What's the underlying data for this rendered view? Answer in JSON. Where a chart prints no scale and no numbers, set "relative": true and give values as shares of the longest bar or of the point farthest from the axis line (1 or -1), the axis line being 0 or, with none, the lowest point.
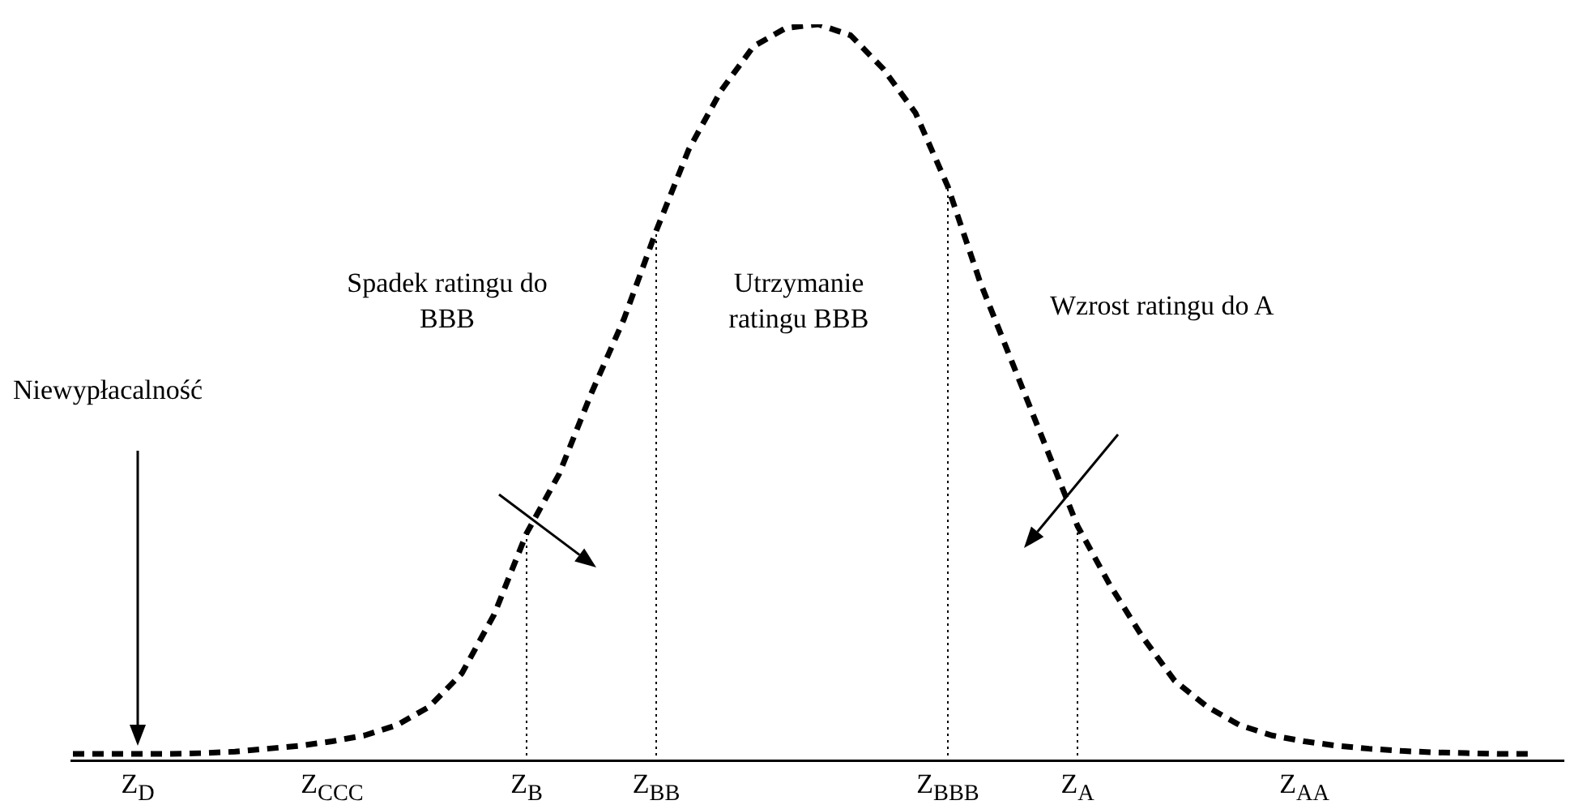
{
  "chart_data": {
    "type": "line",
    "relative": true,
    "line_style": "dashed",
    "marker": "none",
    "grid": false,
    "legend": false,
    "tick_labels": "x",
    "categories": [
      null,
      null,
      "Z$_{D}$",
      null,
      null,
      null,
      null,
      null,
      "Z$_{CCC}$",
      null,
      null,
      null,
      null,
      null,
      "Z$_{B}$",
      null,
      null,
      null,
      "Z$_{BB}$",
      null,
      null,
      null,
      null,
      null,
      null,
      null,
      null,
      "Z$_{BBB}$",
      null,
      null,
      null,
      "Z$_{A}$",
      null,
      null,
      null,
      null,
      null,
      null,
      "Z$_{AA}$",
      null,
      null,
      null,
      null,
      null,
      null,
      null,
      null
    ],
    "series": [
      {
        "color": "#000000",
        "values": [
          0.011,
          0.011,
          0.011,
          0.011,
          0.012,
          0.014,
          0.018,
          0.022,
          0.028,
          0.036,
          0.05,
          0.075,
          0.12,
          0.2,
          0.31,
          0.39,
          0.5,
          0.6,
          0.72,
          0.83,
          0.91,
          0.97,
          0.995,
          1,
          0.985,
          0.94,
          0.88,
          0.78,
          0.65,
          0.54,
          0.43,
          0.32,
          0.24,
          0.17,
          0.11,
          0.075,
          0.05,
          0.036,
          0.028,
          0.022,
          0.018,
          0.015,
          0.013,
          0.012,
          0.011,
          0.011,
          null
        ]
      }
    ],
    "ref_lines": [
      {
        "axis": "x",
        "value": "Z$_{B}$",
        "line_style": "dotted",
        "color": "#000000"
      },
      {
        "axis": "x",
        "value": "Z$_{BB}$",
        "line_style": "dotted",
        "color": "#000000"
      },
      {
        "axis": "x",
        "value": "Z$_{BBB}$",
        "line_style": "dotted",
        "color": "#000000"
      },
      {
        "axis": "x",
        "value": "Z$_{A}$",
        "line_style": "dotted",
        "color": "#000000"
      }
    ],
    "annotations": [
      "Niewypłacalność",
      "Spadek ratingu do BBB",
      "Utrzymanie ratingu BBB",
      "Wzrost ratingu do A"
    ]
  }
}
